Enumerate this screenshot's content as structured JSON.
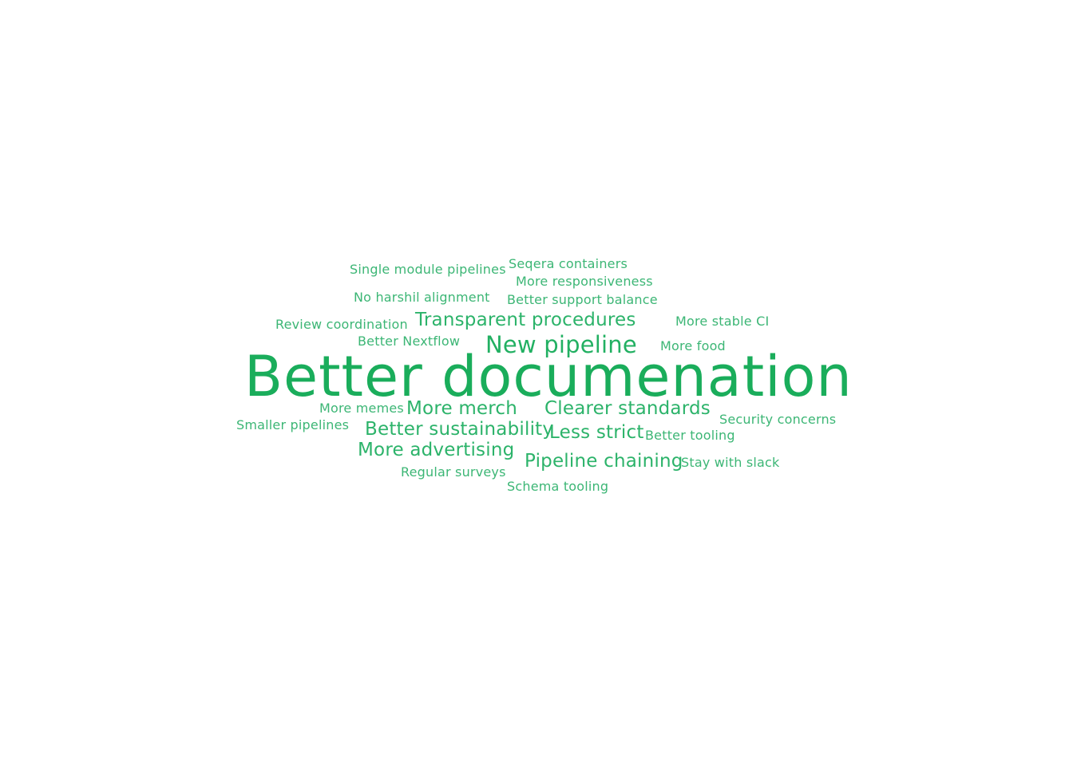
{
  "words": [
    "Better documenation",
    "Transparent procedures",
    "New pipeline",
    "More merch",
    "Clearer standards",
    "Better sustainability",
    "Less strict",
    "More advertising",
    "Pipeline chaining",
    "Single module pipelines",
    "Seqera containers",
    "More responsiveness",
    "No harshil alignment",
    "Better support balance",
    "Review coordination",
    "More stable CI",
    "Better Nextflow",
    "More food",
    "More memes",
    "Security concerns",
    "Smaller pipelines",
    "Better tooling",
    "Stay with slack",
    "Regular surveys",
    "Schema tooling"
  ]
}
